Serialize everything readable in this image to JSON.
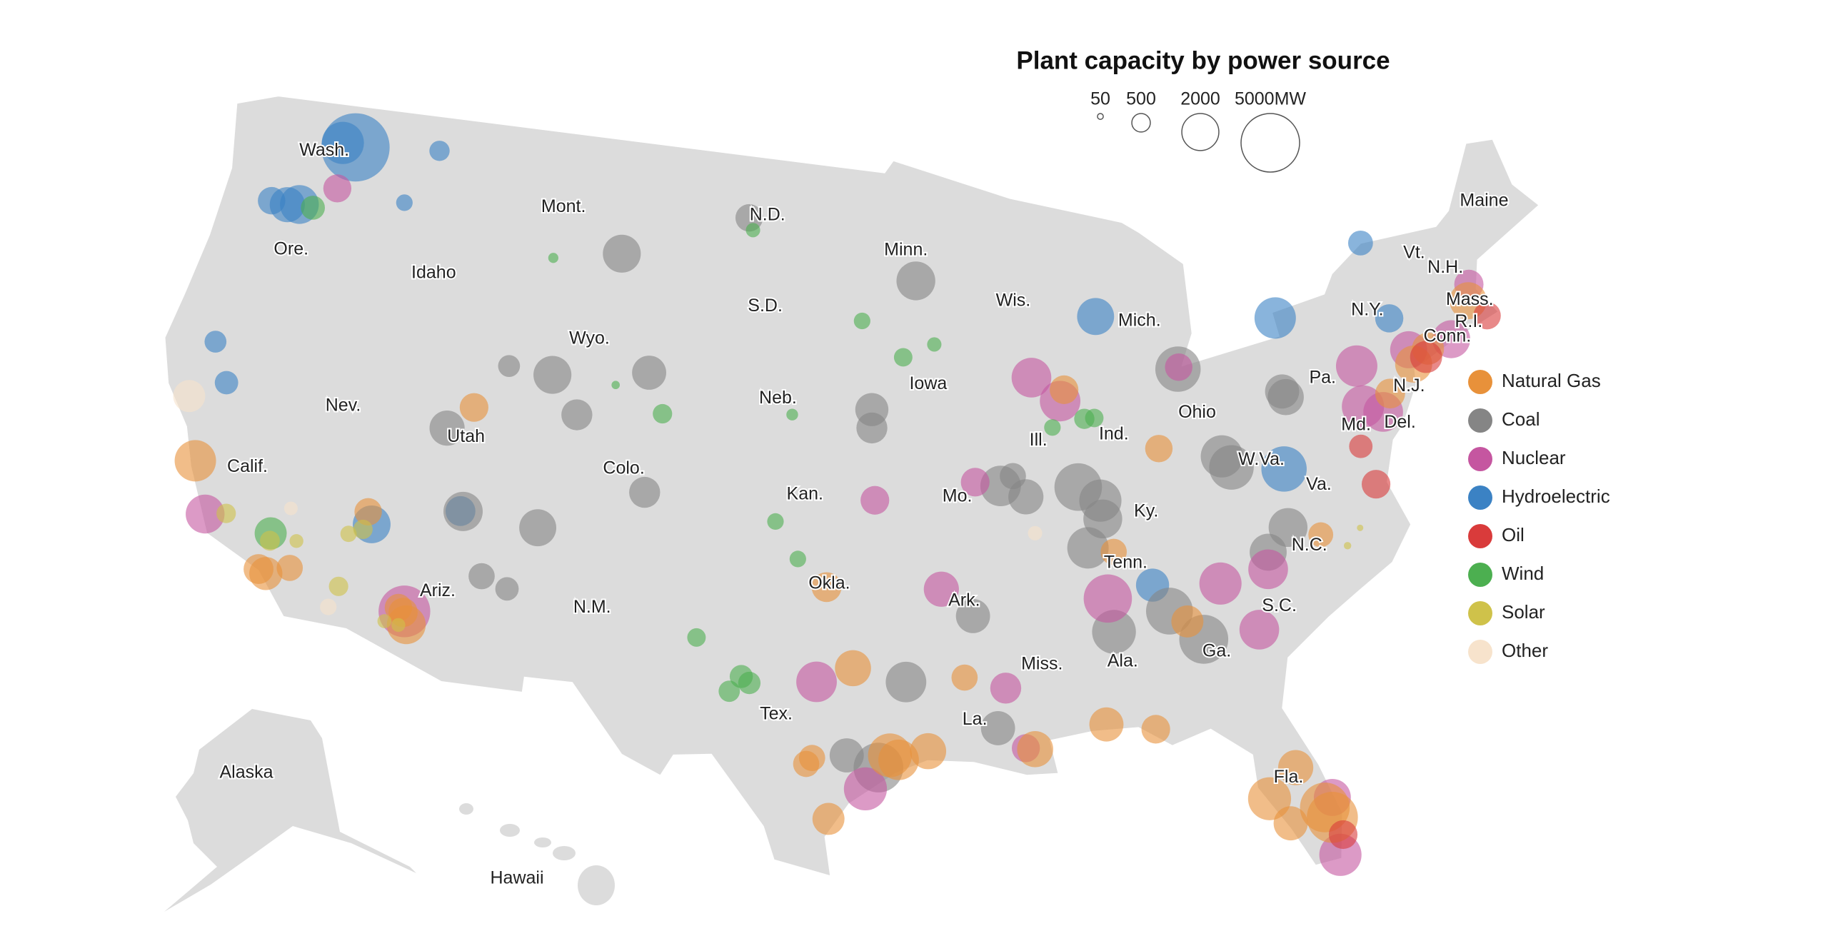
{
  "title": "Plant capacity by power source",
  "size_legend": {
    "ticks": [
      50,
      500,
      2000,
      {
        "value": 5000,
        "label": "5000MW"
      }
    ]
  },
  "sources": [
    {
      "name": "Natural Gas",
      "color": "#e8913a"
    },
    {
      "name": "Coal",
      "color": "#858585"
    },
    {
      "name": "Nuclear",
      "color": "#c556a0"
    },
    {
      "name": "Hydroelectric",
      "color": "#3b82c4"
    },
    {
      "name": "Oil",
      "color": "#d93b3b"
    },
    {
      "name": "Wind",
      "color": "#4caf50"
    },
    {
      "name": "Solar",
      "color": "#cfc24a"
    },
    {
      "name": "Other",
      "color": "#f7e3cc"
    }
  ],
  "state_labels": [
    {
      "label": "Wash.",
      "lon": -120.3,
      "lat": 47.6
    },
    {
      "label": "Ore.",
      "lon": -120.5,
      "lat": 44.2
    },
    {
      "label": "Calif.",
      "lon": -119.8,
      "lat": 37.0
    },
    {
      "label": "Nev.",
      "lon": -116.8,
      "lat": 39.6
    },
    {
      "label": "Idaho",
      "lon": -114.4,
      "lat": 44.4
    },
    {
      "label": "Mont.",
      "lon": -109.4,
      "lat": 47.2
    },
    {
      "label": "Wyo.",
      "lon": -107.5,
      "lat": 43.0
    },
    {
      "label": "Utah",
      "lon": -111.8,
      "lat": 39.3
    },
    {
      "label": "Colo.",
      "lon": -105.5,
      "lat": 38.9
    },
    {
      "label": "Ariz.",
      "lon": -111.8,
      "lat": 34.2
    },
    {
      "label": "N.M.",
      "lon": -106.1,
      "lat": 34.3
    },
    {
      "label": "N.D.",
      "lon": -100.4,
      "lat": 47.5
    },
    {
      "label": "S.D.",
      "lon": -100.3,
      "lat": 44.5
    },
    {
      "label": "Neb.",
      "lon": -99.6,
      "lat": 41.5
    },
    {
      "label": "Kan.",
      "lon": -98.4,
      "lat": 38.4
    },
    {
      "label": "Okla.",
      "lon": -97.4,
      "lat": 35.5
    },
    {
      "label": "Tex.",
      "lon": -99.2,
      "lat": 31.2
    },
    {
      "label": "Minn.",
      "lon": -94.3,
      "lat": 46.4
    },
    {
      "label": "Iowa",
      "lon": -93.5,
      "lat": 42.0
    },
    {
      "label": "Mo.",
      "lon": -92.5,
      "lat": 38.3
    },
    {
      "label": "Ark.",
      "lon": -92.4,
      "lat": 34.9
    },
    {
      "label": "La.",
      "lon": -92.2,
      "lat": 31.0
    },
    {
      "label": "Wis.",
      "lon": -89.8,
      "lat": 44.6
    },
    {
      "label": "Ill.",
      "lon": -89.2,
      "lat": 40.0
    },
    {
      "label": "Mich.",
      "lon": -84.6,
      "lat": 43.6
    },
    {
      "label": "Ind.",
      "lon": -86.2,
      "lat": 40.0
    },
    {
      "label": "Ohio",
      "lon": -82.8,
      "lat": 40.4
    },
    {
      "label": "Ky.",
      "lon": -85.3,
      "lat": 37.4
    },
    {
      "label": "Tenn.",
      "lon": -86.3,
      "lat": 35.8
    },
    {
      "label": "Miss.",
      "lon": -89.7,
      "lat": 32.7
    },
    {
      "label": "Ala.",
      "lon": -86.8,
      "lat": 32.6
    },
    {
      "label": "Ga.",
      "lon": -83.4,
      "lat": 32.6
    },
    {
      "label": "Fla.",
      "lon": -81.6,
      "lat": 28.2
    },
    {
      "label": "S.C.",
      "lon": -80.9,
      "lat": 33.8
    },
    {
      "label": "N.C.",
      "lon": -79.4,
      "lat": 35.6
    },
    {
      "label": "Va.",
      "lon": -78.6,
      "lat": 37.5
    },
    {
      "label": "W.Va.",
      "lon": -80.6,
      "lat": 38.6
    },
    {
      "label": "Pa.",
      "lon": -77.6,
      "lat": 40.9
    },
    {
      "label": "N.Y.",
      "lon": -75.2,
      "lat": 42.8
    },
    {
      "label": "Vt.",
      "lon": -72.7,
      "lat": 44.3
    },
    {
      "label": "N.H.",
      "lon": -71.6,
      "lat": 43.6
    },
    {
      "label": "Maine",
      "lon": -69.2,
      "lat": 45.4
    },
    {
      "label": "Mass.",
      "lon": -71.0,
      "lat": 42.4
    },
    {
      "label": "R.I.",
      "lon": -71.3,
      "lat": 41.7
    },
    {
      "label": "Conn.",
      "lon": -72.3,
      "lat": 41.4
    },
    {
      "label": "N.J.",
      "lon": -74.3,
      "lat": 40.1
    },
    {
      "label": "Del.",
      "lon": -75.0,
      "lat": 39.0
    },
    {
      "label": "Md.",
      "lon": -76.7,
      "lat": 39.2
    }
  ],
  "insets": [
    {
      "label": "Alaska"
    },
    {
      "label": "Hawaii"
    }
  ],
  "plants": [
    {
      "source": "Hydroelectric",
      "lon": -119.0,
      "lat": 47.95,
      "mw": 6800
    },
    {
      "source": "Hydroelectric",
      "lon": -119.6,
      "lat": 48.0,
      "mw": 2600
    },
    {
      "source": "Hydroelectric",
      "lon": -120.7,
      "lat": 45.7,
      "mw": 2200
    },
    {
      "source": "Hydroelectric",
      "lon": -121.2,
      "lat": 45.6,
      "mw": 1800
    },
    {
      "source": "Hydroelectric",
      "lon": -121.9,
      "lat": 45.6,
      "mw": 1100
    },
    {
      "source": "Hydroelectric",
      "lon": -114.7,
      "lat": 36.0,
      "mw": 2080
    },
    {
      "source": "Hydroelectric",
      "lon": -111.5,
      "lat": 36.9,
      "mw": 1300
    },
    {
      "source": "Hydroelectric",
      "lon": -122.4,
      "lat": 40.7,
      "mw": 700
    },
    {
      "source": "Hydroelectric",
      "lon": -79.0,
      "lat": 43.1,
      "mw": 2500
    },
    {
      "source": "Hydroelectric",
      "lon": -74.8,
      "lat": 45.0,
      "mw": 900
    },
    {
      "source": "Hydroelectric",
      "lon": -121.5,
      "lat": 39.5,
      "mw": 800
    },
    {
      "source": "Hydroelectric",
      "lon": -86.4,
      "lat": 43.9,
      "mw": 2000
    },
    {
      "source": "Hydroelectric",
      "lon": -79.8,
      "lat": 38.2,
      "mw": 3000
    },
    {
      "source": "Hydroelectric",
      "lon": -116.3,
      "lat": 46.5,
      "mw": 400
    },
    {
      "source": "Hydroelectric",
      "lon": -115.3,
      "lat": 48.4,
      "mw": 600
    },
    {
      "source": "Hydroelectric",
      "lon": -85.4,
      "lat": 35.0,
      "mw": 1600
    },
    {
      "source": "Hydroelectric",
      "lon": -74.4,
      "lat": 42.4,
      "mw": 1160
    },
    {
      "source": "Coal",
      "lon": -106.6,
      "lat": 45.9,
      "mw": 2100
    },
    {
      "source": "Coal",
      "lon": -108.8,
      "lat": 41.7,
      "mw": 2100
    },
    {
      "source": "Coal",
      "lon": -111.4,
      "lat": 36.9,
      "mw": 2250
    },
    {
      "source": "Coal",
      "lon": -108.5,
      "lat": 36.7,
      "mw": 2000
    },
    {
      "source": "Coal",
      "lon": -112.6,
      "lat": 39.5,
      "mw": 1800
    },
    {
      "source": "Coal",
      "lon": -104.9,
      "lat": 42.1,
      "mw": 1700
    },
    {
      "source": "Coal",
      "lon": -83.8,
      "lat": 33.06,
      "mw": 3500
    },
    {
      "source": "Coal",
      "lon": -84.9,
      "lat": 34.1,
      "mw": 3200
    },
    {
      "source": "Coal",
      "lon": -87.8,
      "lat": 38.4,
      "mw": 3300
    },
    {
      "source": "Coal",
      "lon": -83.3,
      "lat": 41.9,
      "mw": 3000
    },
    {
      "source": "Coal",
      "lon": -81.8,
      "lat": 38.5,
      "mw": 2900
    },
    {
      "source": "Coal",
      "lon": -87.0,
      "lat": 37.9,
      "mw": 2600
    },
    {
      "source": "Coal",
      "lon": -87.65,
      "lat": 36.4,
      "mw": 2500
    },
    {
      "source": "Coal",
      "lon": -86.98,
      "lat": 37.3,
      "mw": 2200
    },
    {
      "source": "Coal",
      "lon": -90.8,
      "lat": 38.6,
      "mw": 2400
    },
    {
      "source": "Coal",
      "lon": -95.6,
      "lat": 29.5,
      "mw": 3600
    },
    {
      "source": "Coal",
      "lon": -94.6,
      "lat": 32.3,
      "mw": 2400
    },
    {
      "source": "Coal",
      "lon": -101.2,
      "lat": 47.4,
      "mw": 1100
    },
    {
      "source": "Coal",
      "lon": -93.9,
      "lat": 45.4,
      "mw": 2200
    },
    {
      "source": "Coal",
      "lon": -87.0,
      "lat": 33.6,
      "mw": 2800
    },
    {
      "source": "Coal",
      "lon": -82.1,
      "lat": 38.9,
      "mw": 2600
    },
    {
      "source": "Coal",
      "lon": -79.2,
      "lat": 40.5,
      "mw": 1900
    },
    {
      "source": "Coal",
      "lon": -79.3,
      "lat": 40.7,
      "mw": 1700
    },
    {
      "source": "Coal",
      "lon": -90.3,
      "lat": 38.9,
      "mw": 1000
    },
    {
      "source": "Coal",
      "lon": -89.85,
      "lat": 38.2,
      "mw": 1800
    },
    {
      "source": "Coal",
      "lon": -91.4,
      "lat": 30.7,
      "mw": 1700
    },
    {
      "source": "Coal",
      "lon": -92.1,
      "lat": 34.4,
      "mw": 1700
    },
    {
      "source": "Coal",
      "lon": -80.06,
      "lat": 36.3,
      "mw": 2200
    },
    {
      "source": "Coal",
      "lon": -80.96,
      "lat": 35.6,
      "mw": 2000
    },
    {
      "source": "Coal",
      "lon": -96.7,
      "lat": 29.9,
      "mw": 1700
    },
    {
      "source": "Coal",
      "lon": -104.6,
      "lat": 38.2,
      "mw": 1400
    },
    {
      "source": "Coal",
      "lon": -107.6,
      "lat": 40.5,
      "mw": 1400
    },
    {
      "source": "Coal",
      "lon": -110.6,
      "lat": 41.8,
      "mw": 700
    },
    {
      "source": "Coal",
      "lon": -109.3,
      "lat": 34.6,
      "mw": 800
    },
    {
      "source": "Coal",
      "lon": -110.3,
      "lat": 34.9,
      "mw": 1000
    },
    {
      "source": "Coal",
      "lon": -95.8,
      "lat": 41.2,
      "mw": 1600
    },
    {
      "source": "Coal",
      "lon": -95.8,
      "lat": 40.6,
      "mw": 1400
    },
    {
      "source": "Nuclear",
      "lon": -112.86,
      "lat": 33.39,
      "mw": 3900
    },
    {
      "source": "Nuclear",
      "lon": -120.85,
      "lat": 35.2,
      "mw": 2200
    },
    {
      "source": "Nuclear",
      "lon": -119.3,
      "lat": 46.5,
      "mw": 1150
    },
    {
      "source": "Nuclear",
      "lon": -96.05,
      "lat": 28.8,
      "mw": 2700
    },
    {
      "source": "Nuclear",
      "lon": -97.8,
      "lat": 32.3,
      "mw": 2400
    },
    {
      "source": "Nuclear",
      "lon": -81.76,
      "lat": 33.14,
      "mw": 2300
    },
    {
      "source": "Nuclear",
      "lon": -87.1,
      "lat": 34.7,
      "mw": 3400
    },
    {
      "source": "Nuclear",
      "lon": -82.9,
      "lat": 34.8,
      "mw": 2600
    },
    {
      "source": "Nuclear",
      "lon": -80.33,
      "lat": 25.43,
      "mw": 2600
    },
    {
      "source": "Nuclear",
      "lon": -80.25,
      "lat": 27.35,
      "mw": 2000
    },
    {
      "source": "Nuclear",
      "lon": -76.27,
      "lat": 39.76,
      "mw": 2600
    },
    {
      "source": "Nuclear",
      "lon": -89.28,
      "lat": 42.07,
      "mw": 2300
    },
    {
      "source": "Nuclear",
      "lon": -88.2,
      "lat": 41.24,
      "mw": 2400
    },
    {
      "source": "Nuclear",
      "lon": -72.17,
      "lat": 41.3,
      "mw": 2100
    },
    {
      "source": "Nuclear",
      "lon": -73.95,
      "lat": 41.27,
      "mw": 2000
    },
    {
      "source": "Nuclear",
      "lon": -75.54,
      "lat": 39.46,
      "mw": 2300
    },
    {
      "source": "Nuclear",
      "lon": -93.23,
      "lat": 35.31,
      "mw": 1800
    },
    {
      "source": "Nuclear",
      "lon": -95.69,
      "lat": 38.24,
      "mw": 1200
    },
    {
      "source": "Nuclear",
      "lon": -83.26,
      "lat": 41.96,
      "mw": 1100
    },
    {
      "source": "Nuclear",
      "lon": -70.85,
      "lat": 42.9,
      "mw": 1250
    },
    {
      "source": "Nuclear",
      "lon": -91.78,
      "lat": 38.76,
      "mw": 1200
    },
    {
      "source": "Nuclear",
      "lon": -76.15,
      "lat": 41.09,
      "mw": 2500
    },
    {
      "source": "Nuclear",
      "lon": -81.07,
      "lat": 35.05,
      "mw": 2300
    },
    {
      "source": "Nuclear",
      "lon": -91.05,
      "lat": 32.0,
      "mw": 1400
    },
    {
      "source": "Nuclear",
      "lon": -90.47,
      "lat": 30.0,
      "mw": 1150
    },
    {
      "source": "Natural Gas",
      "lon": -80.37,
      "lat": 26.7,
      "mw": 3800
    },
    {
      "source": "Natural Gas",
      "lon": -80.56,
      "lat": 27.06,
      "mw": 3600
    },
    {
      "source": "Natural Gas",
      "lon": -82.35,
      "lat": 27.6,
      "mw": 2700
    },
    {
      "source": "Natural Gas",
      "lon": -81.78,
      "lat": 26.7,
      "mw": 1700
    },
    {
      "source": "Natural Gas",
      "lon": -121.78,
      "lat": 36.8,
      "mw": 2500
    },
    {
      "source": "Natural Gas",
      "lon": -118.1,
      "lat": 33.76,
      "mw": 1600
    },
    {
      "source": "Natural Gas",
      "lon": -118.4,
      "lat": 33.85,
      "mw": 1300
    },
    {
      "source": "Natural Gas",
      "lon": -112.9,
      "lat": 33.35,
      "mw": 1250
    },
    {
      "source": "Natural Gas",
      "lon": -112.7,
      "lat": 32.97,
      "mw": 2200
    },
    {
      "source": "Natural Gas",
      "lon": -96.5,
      "lat": 32.76,
      "mw": 1900
    },
    {
      "source": "Natural Gas",
      "lon": -94.9,
      "lat": 29.75,
      "mw": 2400
    },
    {
      "source": "Natural Gas",
      "lon": -93.87,
      "lat": 30.02,
      "mw": 1900
    },
    {
      "source": "Natural Gas",
      "lon": -90.15,
      "lat": 29.95,
      "mw": 1900
    },
    {
      "source": "Natural Gas",
      "lon": -73.18,
      "lat": 41.17,
      "mw": 1500
    },
    {
      "source": "Natural Gas",
      "lon": -73.9,
      "lat": 40.78,
      "mw": 2000
    },
    {
      "source": "Natural Gas",
      "lon": -71.07,
      "lat": 42.39,
      "mw": 2000
    },
    {
      "source": "Natural Gas",
      "lon": -111.7,
      "lat": 40.3,
      "mw": 1200
    },
    {
      "source": "Natural Gas",
      "lon": -114.93,
      "lat": 36.38,
      "mw": 1100
    },
    {
      "source": "Natural Gas",
      "lon": -113.1,
      "lat": 33.48,
      "mw": 1100
    },
    {
      "source": "Natural Gas",
      "lon": -98.1,
      "lat": 29.6,
      "mw": 1000
    },
    {
      "source": "Natural Gas",
      "lon": -97.9,
      "lat": 29.8,
      "mw": 1000
    },
    {
      "source": "Natural Gas",
      "lon": -97.3,
      "lat": 27.8,
      "mw": 1500
    },
    {
      "source": "Natural Gas",
      "lon": -95.2,
      "lat": 29.9,
      "mw": 2800
    },
    {
      "source": "Natural Gas",
      "lon": -87.6,
      "lat": 30.6,
      "mw": 1700
    },
    {
      "source": "Natural Gas",
      "lon": -85.9,
      "lat": 30.3,
      "mw": 1200
    },
    {
      "source": "Natural Gas",
      "lon": -84.3,
      "lat": 33.7,
      "mw": 1500
    },
    {
      "source": "Natural Gas",
      "lon": -86.7,
      "lat": 36.2,
      "mw": 1000
    },
    {
      "source": "Natural Gas",
      "lon": -81.3,
      "lat": 28.5,
      "mw": 1800
    },
    {
      "source": "Natural Gas",
      "lon": -78.9,
      "lat": 35.9,
      "mw": 900
    },
    {
      "source": "Natural Gas",
      "lon": -75.1,
      "lat": 40.0,
      "mw": 1300
    },
    {
      "source": "Natural Gas",
      "lon": -88.0,
      "lat": 41.6,
      "mw": 1200
    },
    {
      "source": "Natural Gas",
      "lon": -84.5,
      "lat": 39.4,
      "mw": 1100
    },
    {
      "source": "Natural Gas",
      "lon": -92.5,
      "lat": 32.4,
      "mw": 1000
    },
    {
      "source": "Natural Gas",
      "lon": -97.5,
      "lat": 35.4,
      "mw": 1300
    },
    {
      "source": "Natural Gas",
      "lon": -117.3,
      "lat": 34.1,
      "mw": 1000
    },
    {
      "source": "Oil",
      "lon": -70.5,
      "lat": 41.77,
      "mw": 1100
    },
    {
      "source": "Oil",
      "lon": -73.34,
      "lat": 40.92,
      "mw": 1500
    },
    {
      "source": "Oil",
      "lon": -76.45,
      "lat": 37.2,
      "mw": 1200
    },
    {
      "source": "Oil",
      "lon": -80.12,
      "lat": 26.08,
      "mw": 1200
    },
    {
      "source": "Oil",
      "lon": -76.7,
      "lat": 38.5,
      "mw": 800
    },
    {
      "source": "Wind",
      "lon": -100.5,
      "lat": 32.4,
      "mw": 780
    },
    {
      "source": "Wind",
      "lon": -100.2,
      "lat": 32.2,
      "mw": 730
    },
    {
      "source": "Wind",
      "lon": -118.3,
      "lat": 35.07,
      "mw": 1500
    },
    {
      "source": "Wind",
      "lon": -120.1,
      "lat": 45.7,
      "mw": 845
    },
    {
      "source": "Wind",
      "lon": -87.3,
      "lat": 40.6,
      "mw": 600
    },
    {
      "source": "Wind",
      "lon": -86.9,
      "lat": 40.6,
      "mw": 500
    },
    {
      "source": "Wind",
      "lon": -100.9,
      "lat": 31.9,
      "mw": 660
    },
    {
      "source": "Wind",
      "lon": -104.2,
      "lat": 40.8,
      "mw": 550
    },
    {
      "source": "Wind",
      "lon": -106.2,
      "lat": 41.6,
      "mw": 100
    },
    {
      "source": "Wind",
      "lon": -94.5,
      "lat": 42.9,
      "mw": 500
    },
    {
      "source": "Wind",
      "lon": -93.2,
      "lat": 43.3,
      "mw": 300
    },
    {
      "source": "Wind",
      "lon": -99.5,
      "lat": 37.5,
      "mw": 400
    },
    {
      "source": "Wind",
      "lon": -98.6,
      "lat": 36.3,
      "mw": 400
    },
    {
      "source": "Wind",
      "lon": -96.2,
      "lat": 44.1,
      "mw": 400
    },
    {
      "source": "Wind",
      "lon": -101.0,
      "lat": 47.0,
      "mw": 300
    },
    {
      "source": "Wind",
      "lon": -88.6,
      "lat": 40.4,
      "mw": 400
    },
    {
      "source": "Wind",
      "lon": -102.2,
      "lat": 33.6,
      "mw": 500
    },
    {
      "source": "Wind",
      "lon": -99.0,
      "lat": 41.0,
      "mw": 200
    },
    {
      "source": "Wind",
      "lon": -109.5,
      "lat": 45.5,
      "mw": 150
    },
    {
      "source": "Solar",
      "lon": -120.1,
      "lat": 35.38,
      "mw": 550
    },
    {
      "source": "Solar",
      "lon": -118.26,
      "lat": 34.83,
      "mw": 580
    },
    {
      "source": "Solar",
      "lon": -115.47,
      "lat": 35.56,
      "mw": 390
    },
    {
      "source": "Solar",
      "lon": -115.4,
      "lat": 33.82,
      "mw": 550
    },
    {
      "source": "Solar",
      "lon": -113.5,
      "lat": 32.97,
      "mw": 290
    },
    {
      "source": "Solar",
      "lon": -112.98,
      "lat": 32.92,
      "mw": 280
    },
    {
      "source": "Solar",
      "lon": -78.0,
      "lat": 35.4,
      "mw": 80
    },
    {
      "source": "Solar",
      "lon": -77.4,
      "lat": 35.9,
      "mw": 60
    },
    {
      "source": "Solar",
      "lon": -114.98,
      "lat": 35.79,
      "mw": 550
    },
    {
      "source": "Solar",
      "lon": -117.3,
      "lat": 35.0,
      "mw": 280
    },
    {
      "source": "Other",
      "lon": -122.75,
      "lat": 38.78,
      "mw": 1500
    },
    {
      "source": "Other",
      "lon": -115.6,
      "lat": 33.1,
      "mw": 400
    },
    {
      "source": "Other",
      "lon": -117.8,
      "lat": 36.0,
      "mw": 270
    },
    {
      "source": "Other",
      "lon": -89.6,
      "lat": 37.0,
      "mw": 300
    }
  ]
}
